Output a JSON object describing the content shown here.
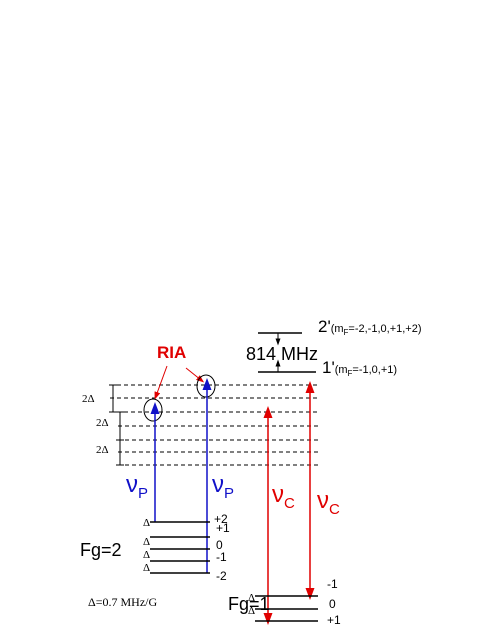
{
  "levels": {
    "upper_2": {
      "label": "2'",
      "prefix": "(m",
      "subscript": "F",
      "suffix": "=-2,-1,0,+1,+2)"
    },
    "upper_1": {
      "label": "1'",
      "prefix": "(m",
      "subscript": "F",
      "suffix": "=-1,0,+1)"
    }
  },
  "splitting": "814 MHz",
  "ria": "RIA",
  "spacing_labels": [
    "2Δ",
    "2Δ",
    "2Δ"
  ],
  "probe_labels": [
    {
      "symbol": "ν",
      "subscript": "P"
    },
    {
      "symbol": "ν",
      "subscript": "P"
    }
  ],
  "coupling_labels": [
    {
      "symbol": "ν",
      "subscript": "C"
    },
    {
      "symbol": "ν",
      "subscript": "C"
    }
  ],
  "ground_2": {
    "label": "Fg=2",
    "sublevels": [
      "+2",
      "+1",
      "0",
      "-1",
      "-2"
    ],
    "spacings": [
      "Δ",
      "Δ",
      "Δ",
      "Δ"
    ]
  },
  "ground_1": {
    "label": "Fg=1",
    "sublevels": [
      "-1",
      "0",
      "+1"
    ],
    "spacings": [
      "Δ",
      "Δ"
    ]
  },
  "zeeman_note": "Δ=0.7 MHz/G"
}
